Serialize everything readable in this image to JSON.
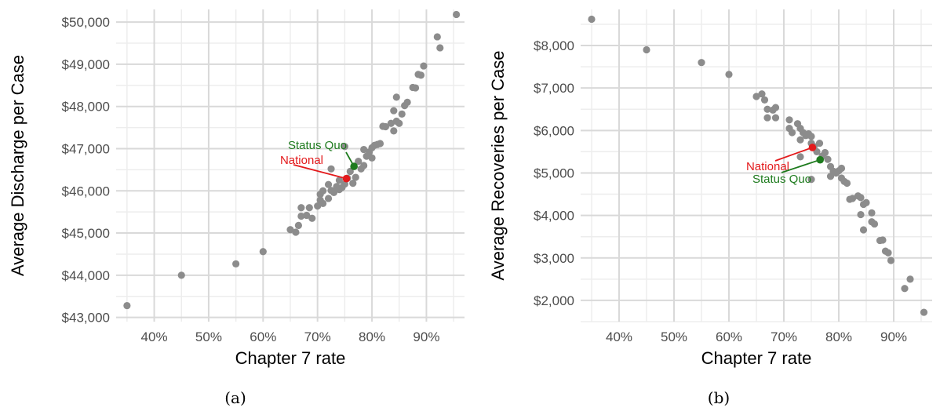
{
  "colors": {
    "point": "#8c8c8c",
    "national": "#e31a1c",
    "status_quo": "#1e7b1e",
    "grid_major": "#d9d9d9",
    "grid_minor": "#ededed"
  },
  "chart_data": [
    {
      "type": "scatter",
      "caption": "(a)",
      "xlabel": "Chapter 7 rate",
      "ylabel": "Average Discharge per Case",
      "xlim": [
        0.33,
        0.97
      ],
      "ylim": [
        42900,
        50300
      ],
      "x_ticks": [
        0.4,
        0.5,
        0.6,
        0.7,
        0.8,
        0.9
      ],
      "x_tick_labels": [
        "40%",
        "50%",
        "60%",
        "70%",
        "80%",
        "90%"
      ],
      "y_ticks": [
        43000,
        44000,
        45000,
        46000,
        47000,
        48000,
        49000,
        50000
      ],
      "y_tick_labels": [
        "$43,000",
        "$44,000",
        "$45,000",
        "$46,000",
        "$47,000",
        "$48,000",
        "$49,000",
        "$50,000"
      ],
      "grid": true,
      "points": [
        [
          0.35,
          43280
        ],
        [
          0.45,
          44000
        ],
        [
          0.55,
          44270
        ],
        [
          0.6,
          44560
        ],
        [
          0.65,
          45080
        ],
        [
          0.66,
          45020
        ],
        [
          0.665,
          45180
        ],
        [
          0.67,
          45400
        ],
        [
          0.67,
          45600
        ],
        [
          0.68,
          45420
        ],
        [
          0.685,
          45600
        ],
        [
          0.69,
          45350
        ],
        [
          0.7,
          45640
        ],
        [
          0.705,
          45780
        ],
        [
          0.705,
          45920
        ],
        [
          0.71,
          46000
        ],
        [
          0.71,
          45700
        ],
        [
          0.72,
          46150
        ],
        [
          0.72,
          45820
        ],
        [
          0.725,
          46520
        ],
        [
          0.725,
          46010
        ],
        [
          0.73,
          45960
        ],
        [
          0.735,
          46100
        ],
        [
          0.74,
          46030
        ],
        [
          0.74,
          46250
        ],
        [
          0.745,
          46080
        ],
        [
          0.75,
          47050
        ],
        [
          0.75,
          46160
        ],
        [
          0.755,
          46300
        ],
        [
          0.76,
          46460
        ],
        [
          0.765,
          46180
        ],
        [
          0.77,
          46320
        ],
        [
          0.775,
          46700
        ],
        [
          0.78,
          46520
        ],
        [
          0.785,
          46600
        ],
        [
          0.785,
          46980
        ],
        [
          0.79,
          46820
        ],
        [
          0.795,
          46920
        ],
        [
          0.8,
          46780
        ],
        [
          0.8,
          47020
        ],
        [
          0.805,
          47080
        ],
        [
          0.81,
          47100
        ],
        [
          0.815,
          47120
        ],
        [
          0.82,
          47530
        ],
        [
          0.825,
          47520
        ],
        [
          0.835,
          47600
        ],
        [
          0.84,
          47420
        ],
        [
          0.84,
          47900
        ],
        [
          0.845,
          47650
        ],
        [
          0.845,
          48220
        ],
        [
          0.85,
          47600
        ],
        [
          0.855,
          47820
        ],
        [
          0.86,
          48020
        ],
        [
          0.865,
          48100
        ],
        [
          0.875,
          48450
        ],
        [
          0.88,
          48440
        ],
        [
          0.885,
          48760
        ],
        [
          0.89,
          48740
        ],
        [
          0.895,
          48960
        ],
        [
          0.92,
          49650
        ],
        [
          0.925,
          49390
        ],
        [
          0.955,
          50180
        ]
      ],
      "highlights": [
        {
          "label": "Status Quo",
          "x": 0.767,
          "y": 46580
        },
        {
          "label": "National",
          "x": 0.753,
          "y": 46290
        }
      ]
    },
    {
      "type": "scatter",
      "caption": "(b)",
      "xlabel": "Chapter 7 rate",
      "ylabel": "Average Recoveries per Case",
      "xlim": [
        0.33,
        0.97
      ],
      "ylim": [
        1500,
        8850
      ],
      "x_ticks": [
        0.4,
        0.5,
        0.6,
        0.7,
        0.8,
        0.9
      ],
      "x_tick_labels": [
        "40%",
        "50%",
        "60%",
        "70%",
        "80%",
        "90%"
      ],
      "y_ticks": [
        2000,
        3000,
        4000,
        5000,
        6000,
        7000,
        8000
      ],
      "y_tick_labels": [
        "$2,000",
        "$3,000",
        "$4,000",
        "$5,000",
        "$6,000",
        "$7,000",
        "$8,000"
      ],
      "grid": true,
      "points": [
        [
          0.35,
          8620
        ],
        [
          0.45,
          7900
        ],
        [
          0.55,
          7600
        ],
        [
          0.6,
          7320
        ],
        [
          0.65,
          6800
        ],
        [
          0.66,
          6860
        ],
        [
          0.665,
          6720
        ],
        [
          0.67,
          6500
        ],
        [
          0.67,
          6300
        ],
        [
          0.68,
          6480
        ],
        [
          0.685,
          6540
        ],
        [
          0.685,
          6300
        ],
        [
          0.71,
          6250
        ],
        [
          0.71,
          6050
        ],
        [
          0.715,
          5950
        ],
        [
          0.725,
          6160
        ],
        [
          0.73,
          6050
        ],
        [
          0.73,
          5780
        ],
        [
          0.735,
          5950
        ],
        [
          0.74,
          5880
        ],
        [
          0.745,
          5920
        ],
        [
          0.75,
          5860
        ],
        [
          0.75,
          5700
        ],
        [
          0.75,
          4850
        ],
        [
          0.73,
          5380
        ],
        [
          0.755,
          5620
        ],
        [
          0.76,
          5500
        ],
        [
          0.765,
          5700
        ],
        [
          0.77,
          5400
        ],
        [
          0.775,
          5480
        ],
        [
          0.78,
          5320
        ],
        [
          0.785,
          5150
        ],
        [
          0.785,
          4920
        ],
        [
          0.79,
          5040
        ],
        [
          0.795,
          5000
        ],
        [
          0.8,
          5050
        ],
        [
          0.805,
          4880
        ],
        [
          0.805,
          5110
        ],
        [
          0.81,
          4800
        ],
        [
          0.815,
          4760
        ],
        [
          0.82,
          4380
        ],
        [
          0.825,
          4400
        ],
        [
          0.835,
          4460
        ],
        [
          0.84,
          4420
        ],
        [
          0.84,
          4020
        ],
        [
          0.845,
          4260
        ],
        [
          0.845,
          3660
        ],
        [
          0.85,
          4300
        ],
        [
          0.86,
          4060
        ],
        [
          0.86,
          3850
        ],
        [
          0.865,
          3800
        ],
        [
          0.875,
          3410
        ],
        [
          0.88,
          3420
        ],
        [
          0.885,
          3160
        ],
        [
          0.89,
          3120
        ],
        [
          0.895,
          2940
        ],
        [
          0.92,
          2280
        ],
        [
          0.93,
          2500
        ],
        [
          0.955,
          1720
        ]
      ],
      "highlights": [
        {
          "label": "National",
          "x": 0.752,
          "y": 5600
        },
        {
          "label": "Status Quo",
          "x": 0.766,
          "y": 5310
        }
      ]
    }
  ]
}
